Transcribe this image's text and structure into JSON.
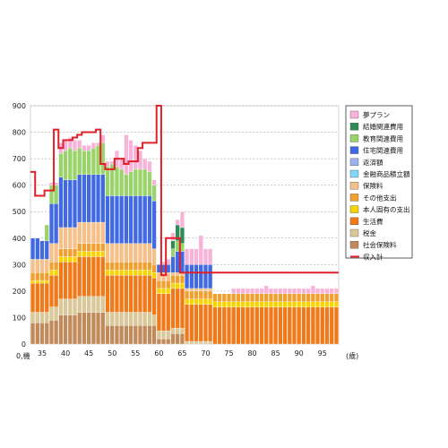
{
  "chart_data": {
    "type": "bar",
    "stacked": true,
    "y_axis_label_top": "900",
    "x_unit": "(歳)",
    "x_start_label": "0,機",
    "ylim": [
      0,
      900
    ],
    "yticks": [
      "0",
      "100",
      "200",
      "300",
      "400",
      "500",
      "600",
      "700",
      "800",
      "900"
    ],
    "xticks": [
      "35",
      "40",
      "45",
      "50",
      "55",
      "60",
      "65",
      "70",
      "75",
      "80",
      "85",
      "90",
      "95"
    ],
    "ages": [
      33,
      34,
      35,
      36,
      37,
      38,
      39,
      40,
      41,
      42,
      43,
      44,
      45,
      46,
      47,
      48,
      49,
      50,
      51,
      52,
      53,
      54,
      55,
      56,
      57,
      58,
      59,
      60,
      61,
      62,
      63,
      64,
      65,
      66,
      67,
      68,
      69,
      70,
      71,
      72,
      73,
      74,
      75,
      76,
      77,
      78,
      79,
      80,
      81,
      82,
      83,
      84,
      85,
      86,
      87,
      88,
      89,
      90,
      91,
      92,
      93,
      94,
      95,
      96,
      97,
      98
    ],
    "series": [
      {
        "name": "夢プラン",
        "color": "#f7b3d8",
        "values": [
          0,
          0,
          0,
          0,
          10,
          10,
          40,
          40,
          40,
          40,
          30,
          20,
          20,
          20,
          10,
          30,
          20,
          10,
          60,
          40,
          150,
          120,
          90,
          70,
          40,
          40,
          20,
          0,
          10,
          20,
          30,
          20,
          60,
          60,
          60,
          60,
          110,
          60,
          60,
          0,
          0,
          0,
          0,
          20,
          20,
          20,
          20,
          20,
          20,
          20,
          30,
          20,
          20,
          20,
          20,
          20,
          20,
          20,
          20,
          20,
          30,
          20,
          20,
          20,
          20,
          20
        ]
      },
      {
        "name": "結婚関連費用",
        "color": "#2e8b57",
        "values": [
          0,
          0,
          0,
          0,
          0,
          0,
          0,
          0,
          0,
          0,
          0,
          0,
          0,
          0,
          0,
          0,
          0,
          0,
          0,
          0,
          0,
          0,
          0,
          0,
          0,
          0,
          0,
          0,
          0,
          0,
          30,
          60,
          60,
          0,
          0,
          0,
          0,
          0,
          0,
          0,
          0,
          0,
          0,
          0,
          0,
          0,
          0,
          0,
          0,
          0,
          0,
          0,
          0,
          0,
          0,
          0,
          0,
          0,
          0,
          0,
          0,
          0,
          0,
          0,
          0,
          0
        ]
      },
      {
        "name": "教育関連費用",
        "color": "#9ad36a",
        "values": [
          0,
          0,
          0,
          60,
          70,
          70,
          90,
          110,
          120,
          110,
          100,
          90,
          90,
          100,
          110,
          120,
          110,
          120,
          110,
          100,
          80,
          90,
          100,
          100,
          100,
          90,
          60,
          0,
          0,
          0,
          30,
          40,
          30,
          0,
          0,
          0,
          0,
          0,
          0,
          0,
          0,
          0,
          0,
          0,
          0,
          0,
          0,
          0,
          0,
          0,
          0,
          0,
          0,
          0,
          0,
          0,
          0,
          0,
          0,
          0,
          0,
          0,
          0,
          0,
          0,
          0
        ]
      },
      {
        "name": "住宅関連費用",
        "color": "#4169e1",
        "values": [
          80,
          80,
          70,
          70,
          150,
          150,
          190,
          180,
          180,
          180,
          180,
          180,
          180,
          180,
          180,
          180,
          180,
          180,
          180,
          180,
          180,
          180,
          180,
          180,
          180,
          180,
          180,
          30,
          30,
          30,
          60,
          80,
          80,
          90,
          90,
          90,
          90,
          90,
          90,
          0,
          0,
          0,
          0,
          0,
          0,
          0,
          0,
          0,
          0,
          0,
          0,
          0,
          0,
          0,
          0,
          0,
          0,
          0,
          0,
          0,
          0,
          0,
          0,
          0,
          0,
          0
        ]
      },
      {
        "name": "返済額",
        "color": "#9db3f0",
        "values": [
          0,
          0,
          0,
          0,
          0,
          0,
          0,
          0,
          0,
          0,
          0,
          0,
          0,
          0,
          0,
          0,
          0,
          0,
          0,
          0,
          0,
          0,
          0,
          0,
          0,
          0,
          0,
          0,
          0,
          0,
          0,
          0,
          0,
          0,
          0,
          0,
          0,
          0,
          0,
          0,
          0,
          0,
          0,
          0,
          0,
          0,
          0,
          0,
          0,
          0,
          0,
          0,
          0,
          0,
          0,
          0,
          0,
          0,
          0,
          0,
          0,
          0,
          0,
          0,
          0,
          0
        ]
      },
      {
        "name": "金融商品積立額",
        "color": "#7fd8f5",
        "values": [
          0,
          0,
          0,
          0,
          0,
          0,
          0,
          0,
          0,
          0,
          0,
          0,
          0,
          0,
          0,
          0,
          0,
          0,
          0,
          0,
          0,
          0,
          0,
          0,
          0,
          0,
          0,
          0,
          0,
          0,
          0,
          0,
          0,
          0,
          0,
          0,
          0,
          0,
          0,
          0,
          0,
          0,
          0,
          0,
          0,
          0,
          0,
          0,
          0,
          0,
          0,
          0,
          0,
          0,
          0,
          0,
          0,
          0,
          0,
          0,
          0,
          0,
          0,
          0,
          0,
          0
        ]
      },
      {
        "name": "保険料",
        "color": "#f5c08a",
        "values": [
          50,
          50,
          50,
          50,
          70,
          70,
          80,
          80,
          80,
          80,
          80,
          80,
          80,
          80,
          80,
          80,
          70,
          70,
          70,
          70,
          70,
          70,
          70,
          70,
          70,
          70,
          60,
          30,
          30,
          30,
          10,
          10,
          10,
          10,
          10,
          10,
          10,
          10,
          10,
          0,
          0,
          0,
          0,
          0,
          0,
          0,
          0,
          0,
          0,
          0,
          0,
          0,
          0,
          0,
          0,
          0,
          0,
          0,
          0,
          0,
          0,
          0,
          0,
          0,
          0,
          0
        ]
      },
      {
        "name": "その他支出",
        "color": "#f0a030",
        "values": [
          30,
          30,
          30,
          30,
          30,
          30,
          30,
          30,
          30,
          30,
          30,
          30,
          30,
          30,
          30,
          30,
          30,
          30,
          30,
          30,
          30,
          30,
          30,
          30,
          30,
          30,
          30,
          30,
          30,
          30,
          30,
          30,
          30,
          30,
          30,
          30,
          30,
          30,
          30,
          30,
          30,
          30,
          30,
          30,
          30,
          30,
          30,
          30,
          30,
          30,
          30,
          30,
          30,
          30,
          30,
          30,
          30,
          30,
          30,
          30,
          30,
          30,
          30,
          30,
          30,
          30
        ]
      },
      {
        "name": "本人固有の支出",
        "color": "#f5d400",
        "values": [
          10,
          10,
          10,
          10,
          20,
          20,
          20,
          20,
          20,
          20,
          20,
          20,
          20,
          20,
          20,
          20,
          20,
          20,
          20,
          20,
          20,
          20,
          20,
          20,
          20,
          20,
          20,
          20,
          20,
          20,
          20,
          20,
          20,
          20,
          20,
          20,
          20,
          20,
          20,
          20,
          20,
          20,
          20,
          20,
          20,
          20,
          20,
          20,
          20,
          20,
          20,
          20,
          20,
          20,
          20,
          20,
          20,
          20,
          20,
          20,
          20,
          20,
          20,
          20,
          20,
          20
        ]
      },
      {
        "name": "生活費",
        "color": "#f07a1a",
        "values": [
          110,
          110,
          110,
          110,
          120,
          120,
          140,
          140,
          140,
          140,
          150,
          150,
          150,
          150,
          150,
          150,
          140,
          140,
          140,
          140,
          140,
          140,
          140,
          140,
          140,
          140,
          140,
          140,
          140,
          140,
          150,
          150,
          150,
          140,
          140,
          140,
          140,
          140,
          140,
          140,
          140,
          140,
          140,
          140,
          140,
          140,
          140,
          140,
          140,
          140,
          140,
          140,
          140,
          140,
          140,
          140,
          140,
          140,
          140,
          140,
          140,
          140,
          140,
          140,
          140,
          140
        ]
      },
      {
        "name": "税金",
        "color": "#d8c89a",
        "values": [
          40,
          40,
          40,
          40,
          50,
          50,
          60,
          60,
          60,
          60,
          60,
          60,
          60,
          60,
          60,
          60,
          50,
          50,
          50,
          50,
          50,
          50,
          50,
          50,
          50,
          50,
          40,
          30,
          30,
          30,
          20,
          20,
          20,
          10,
          10,
          10,
          10,
          10,
          10,
          0,
          0,
          0,
          0,
          0,
          0,
          0,
          0,
          0,
          0,
          0,
          0,
          0,
          0,
          0,
          0,
          0,
          0,
          0,
          0,
          0,
          0,
          0,
          0,
          0,
          0,
          0
        ]
      },
      {
        "name": "社会保険料",
        "color": "#c08a5a",
        "values": [
          80,
          80,
          80,
          80,
          90,
          90,
          110,
          110,
          110,
          110,
          120,
          120,
          120,
          120,
          120,
          120,
          70,
          70,
          70,
          70,
          70,
          70,
          70,
          70,
          70,
          70,
          70,
          20,
          20,
          20,
          40,
          40,
          40,
          0,
          0,
          0,
          0,
          0,
          0,
          0,
          0,
          0,
          0,
          0,
          0,
          0,
          0,
          0,
          0,
          0,
          0,
          0,
          0,
          0,
          0,
          0,
          0,
          0,
          0,
          0,
          0,
          0,
          0,
          0,
          0,
          0
        ]
      }
    ],
    "line": {
      "name": "収入計",
      "color": "#e0202a",
      "points": [
        [
          33,
          650
        ],
        [
          34,
          560
        ],
        [
          35,
          560
        ],
        [
          36,
          580
        ],
        [
          37,
          580
        ],
        [
          38,
          810
        ],
        [
          39,
          740
        ],
        [
          40,
          770
        ],
        [
          41,
          770
        ],
        [
          42,
          780
        ],
        [
          43,
          790
        ],
        [
          44,
          800
        ],
        [
          45,
          800
        ],
        [
          46,
          800
        ],
        [
          47,
          810
        ],
        [
          48,
          680
        ],
        [
          49,
          660
        ],
        [
          50,
          660
        ],
        [
          51,
          700
        ],
        [
          52,
          700
        ],
        [
          53,
          680
        ],
        [
          54,
          690
        ],
        [
          55,
          690
        ],
        [
          56,
          740
        ],
        [
          57,
          760
        ],
        [
          58,
          760
        ],
        [
          59,
          760
        ],
        [
          60,
          900
        ],
        [
          61,
          260
        ],
        [
          62,
          400
        ],
        [
          63,
          400
        ],
        [
          64,
          400
        ],
        [
          65,
          270
        ],
        [
          66,
          270
        ],
        [
          67,
          270
        ],
        [
          98,
          270
        ]
      ]
    },
    "legend_position": "right",
    "grid": true
  }
}
